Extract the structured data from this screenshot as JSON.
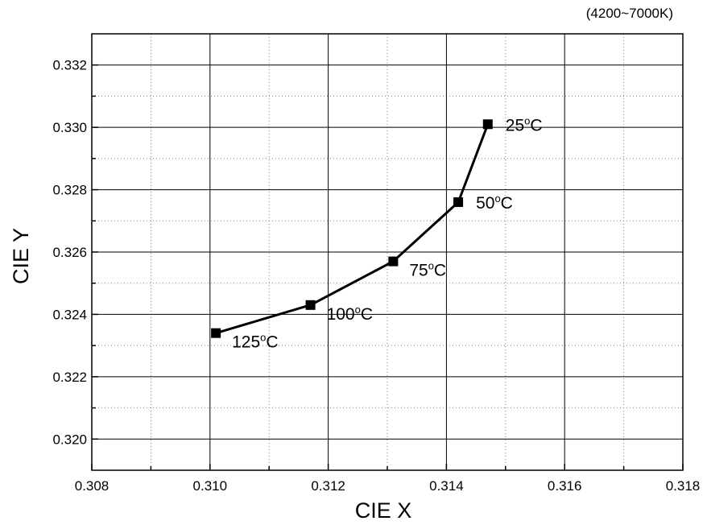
{
  "chart_data": {
    "type": "line",
    "annotation_top_right": "(4200~7000K)",
    "xlabel": "CIE X",
    "ylabel": "CIE Y",
    "xlim": [
      0.308,
      0.318
    ],
    "ylim": [
      0.319,
      0.333
    ],
    "x_ticks": [
      "0.308",
      "0.310",
      "0.312",
      "0.314",
      "0.316",
      "0.318"
    ],
    "y_ticks": [
      "0.320",
      "0.322",
      "0.324",
      "0.326",
      "0.328",
      "0.330",
      "0.332"
    ],
    "grid": {
      "major": "solid",
      "minor": "dotted"
    },
    "marker": "square",
    "colors": {
      "line": "#000000",
      "marker": "#000000",
      "grid_major": "#000000",
      "grid_minor": "#808080"
    },
    "points": [
      {
        "x": 0.3147,
        "y": 0.3301,
        "label": "25",
        "unit": "C",
        "degree": "o",
        "label_pos": "right"
      },
      {
        "x": 0.3142,
        "y": 0.3276,
        "label": "50",
        "unit": "C",
        "degree": "o",
        "label_pos": "right"
      },
      {
        "x": 0.3131,
        "y": 0.3257,
        "label": "75",
        "unit": "C",
        "degree": "o",
        "label_pos": "below-right"
      },
      {
        "x": 0.3117,
        "y": 0.3243,
        "label": "100",
        "unit": "C",
        "degree": "o",
        "label_pos": "below-right"
      },
      {
        "x": 0.3101,
        "y": 0.3234,
        "label": "125",
        "unit": "C",
        "degree": "o",
        "label_pos": "below-right"
      }
    ]
  }
}
